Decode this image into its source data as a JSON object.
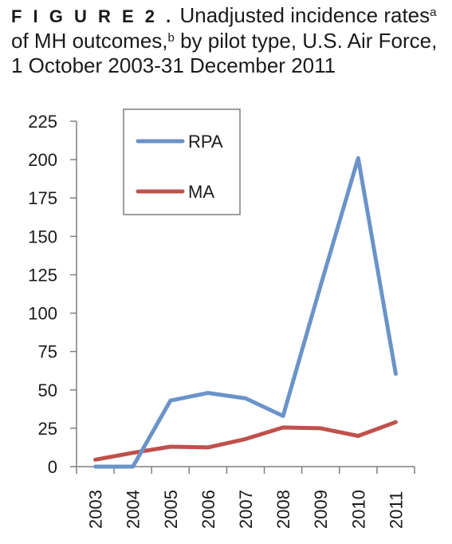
{
  "figure": {
    "label": "F I G U R E  2 .",
    "title_part1": "Unadjusted incidence rates",
    "sup_a": "a",
    "title_part2": " of MH outcomes,",
    "sup_b": "b",
    "title_part3": " by pilot type, U.S. Air Force, 1 October 2003-31 December 2011"
  },
  "chart_data": {
    "type": "line",
    "title": "",
    "xlabel": "",
    "ylabel": "",
    "categories": [
      "2003",
      "2004",
      "2005",
      "2006",
      "2007",
      "2008",
      "2009",
      "2010",
      "2011"
    ],
    "ylim": [
      0,
      225
    ],
    "yticks": [
      0,
      25,
      50,
      75,
      100,
      125,
      150,
      175,
      200,
      225
    ],
    "grid": false,
    "legend_position": "top-left",
    "series": [
      {
        "name": "RPA",
        "color": "#6b93c9",
        "values": [
          0,
          0,
          43,
          48,
          44.5,
          33,
          118,
          201,
          60.5
        ]
      },
      {
        "name": "MA",
        "color": "#c0504d",
        "values": [
          4.5,
          9,
          13,
          12.5,
          18,
          25.5,
          25,
          20,
          29
        ]
      }
    ]
  }
}
